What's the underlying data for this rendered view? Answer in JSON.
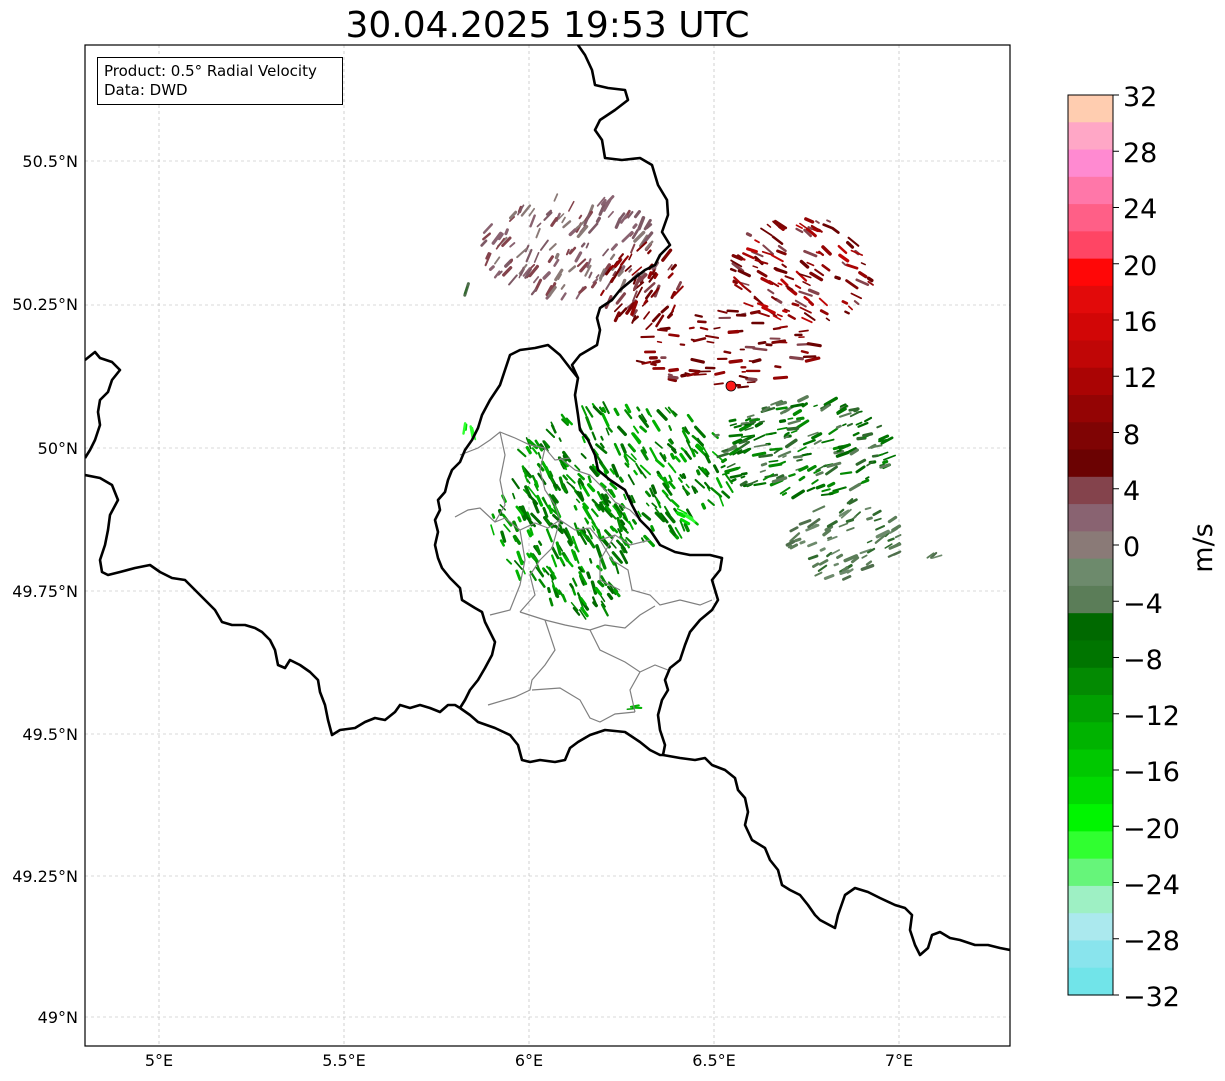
{
  "title": "30.04.2025 19:53 UTC",
  "info": {
    "product": "Product: 0.5° Radial Velocity",
    "data_source": "Data: DWD"
  },
  "axes": {
    "lon_ticks": [
      "5°E",
      "5.5°E",
      "6°E",
      "6.5°E",
      "7°E"
    ],
    "lat_ticks": [
      "50.5°N",
      "50.25°N",
      "50°N",
      "49.75°N",
      "49.5°N",
      "49.25°N",
      "49°N"
    ]
  },
  "colorbar": {
    "unit": "m/s",
    "tick_labels": [
      "32",
      "28",
      "24",
      "20",
      "16",
      "12",
      "8",
      "4",
      "0",
      "−4",
      "−8",
      "−12",
      "−16",
      "−20",
      "−24",
      "−28",
      "−32"
    ],
    "colors_top_to_bottom": [
      "#ffcdb0",
      "#ffa7c6",
      "#ff8ad1",
      "#ff77a9",
      "#ff5f87",
      "#ff4564",
      "#ff0707",
      "#e20a0a",
      "#d20606",
      "#c00606",
      "#aa0404",
      "#940404",
      "#7f0404",
      "#6b0202",
      "#84434c",
      "#896371",
      "#8a7a77",
      "#6d8a6c",
      "#5b7d58",
      "#006900",
      "#007500",
      "#038a02",
      "#01a001",
      "#00b300",
      "#00c800",
      "#00da00",
      "#00f500",
      "#30ff30",
      "#66f57a",
      "#9ef0c4",
      "#abe9ee",
      "#89e4ed",
      "#71e4e9"
    ],
    "range": [
      -32,
      32
    ]
  },
  "radar_site": {
    "lon": 6.548,
    "lat": 50.111,
    "color": "#ff1a1a"
  },
  "map_extent": {
    "lon": [
      4.8,
      7.3
    ],
    "lat": [
      48.95,
      50.7
    ]
  }
}
